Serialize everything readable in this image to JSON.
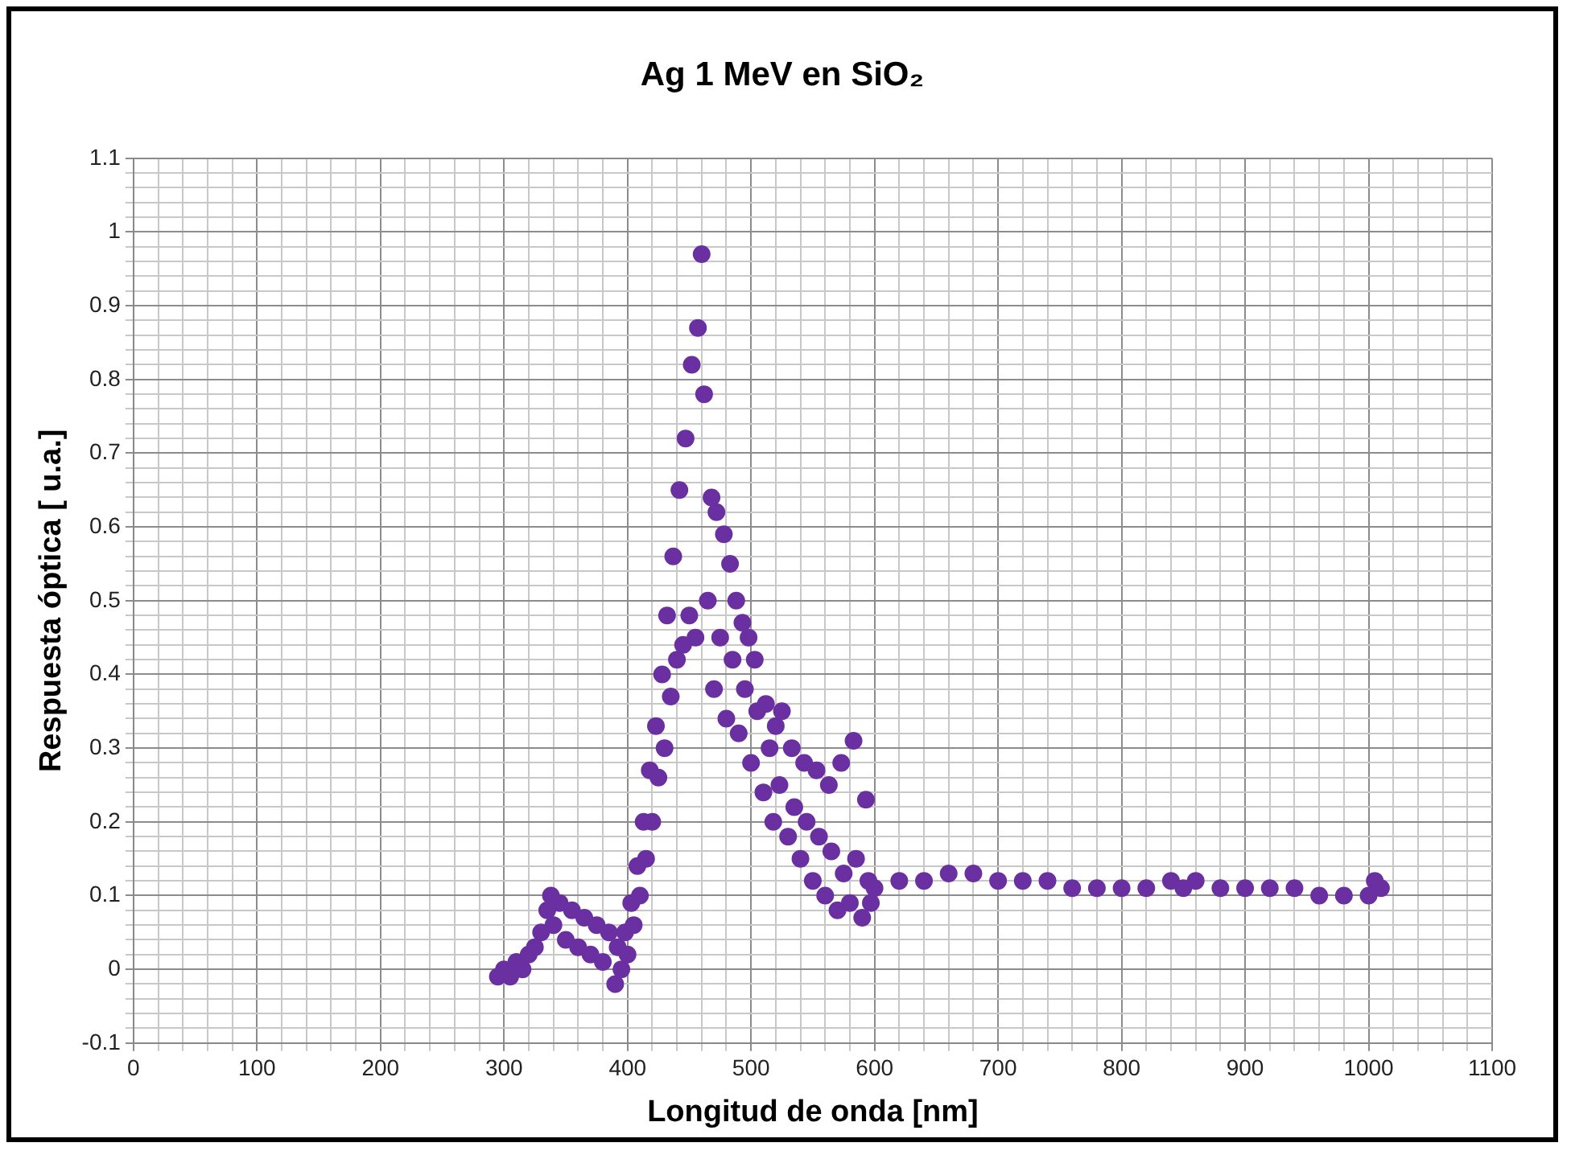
{
  "chart_data": {
    "type": "scatter",
    "title": "Ag 1 MeV en SiO₂",
    "xlabel": "Longitud de onda [nm]",
    "ylabel": "Respuesta óptica [ u.a.]",
    "x": [
      295,
      300,
      305,
      310,
      315,
      320,
      325,
      330,
      335,
      338,
      340,
      345,
      350,
      355,
      360,
      365,
      370,
      375,
      380,
      385,
      390,
      392,
      395,
      398,
      400,
      403,
      405,
      408,
      410,
      413,
      415,
      418,
      420,
      423,
      425,
      428,
      430,
      432,
      435,
      437,
      440,
      442,
      445,
      447,
      450,
      452,
      455,
      457,
      460,
      462,
      465,
      468,
      470,
      472,
      475,
      478,
      480,
      483,
      485,
      488,
      490,
      493,
      495,
      498,
      500,
      503,
      505,
      510,
      512,
      515,
      518,
      520,
      523,
      525,
      530,
      533,
      535,
      540,
      543,
      545,
      550,
      553,
      555,
      560,
      563,
      565,
      570,
      573,
      575,
      580,
      583,
      585,
      590,
      593,
      595,
      597,
      600,
      620,
      640,
      660,
      680,
      700,
      720,
      740,
      760,
      780,
      800,
      820,
      840,
      850,
      860,
      880,
      900,
      920,
      940,
      960,
      980,
      1000,
      1005,
      1010
    ],
    "values": [
      -0.01,
      0.0,
      -0.01,
      0.01,
      0.0,
      0.02,
      0.03,
      0.05,
      0.08,
      0.1,
      0.06,
      0.09,
      0.04,
      0.08,
      0.03,
      0.07,
      0.02,
      0.06,
      0.01,
      0.05,
      -0.02,
      0.03,
      0.0,
      0.05,
      0.02,
      0.09,
      0.06,
      0.14,
      0.1,
      0.2,
      0.15,
      0.27,
      0.2,
      0.33,
      0.26,
      0.4,
      0.3,
      0.48,
      0.37,
      0.56,
      0.42,
      0.65,
      0.44,
      0.72,
      0.48,
      0.82,
      0.45,
      0.87,
      0.97,
      0.78,
      0.5,
      0.64,
      0.38,
      0.62,
      0.45,
      0.59,
      0.34,
      0.55,
      0.42,
      0.5,
      0.32,
      0.47,
      0.38,
      0.45,
      0.28,
      0.42,
      0.35,
      0.24,
      0.36,
      0.3,
      0.2,
      0.33,
      0.25,
      0.35,
      0.18,
      0.3,
      0.22,
      0.15,
      0.28,
      0.2,
      0.12,
      0.27,
      0.18,
      0.1,
      0.25,
      0.16,
      0.08,
      0.28,
      0.13,
      0.09,
      0.31,
      0.15,
      0.07,
      0.23,
      0.12,
      0.09,
      0.11,
      0.12,
      0.12,
      0.13,
      0.13,
      0.12,
      0.12,
      0.12,
      0.11,
      0.11,
      0.11,
      0.11,
      0.12,
      0.11,
      0.12,
      0.11,
      0.11,
      0.11,
      0.11,
      0.1,
      0.1,
      0.1,
      0.12,
      0.11
    ],
    "color": "#6a2fa0",
    "marker": "circle",
    "grid": true,
    "xlim": [
      0,
      1100
    ],
    "ylim": [
      -0.1,
      1.1
    ],
    "xticks": [
      0,
      {
        "value": 20,
        "label": null
      },
      {
        "value": 40,
        "label": null
      },
      {
        "value": 60,
        "label": null
      },
      {
        "value": 80,
        "label": null
      },
      100,
      {
        "value": 120,
        "label": null
      },
      {
        "value": 140,
        "label": null
      },
      {
        "value": 160,
        "label": null
      },
      {
        "value": 180,
        "label": null
      },
      200,
      {
        "value": 220,
        "label": null
      },
      {
        "value": 240,
        "label": null
      },
      {
        "value": 260,
        "label": null
      },
      {
        "value": 280,
        "label": null
      },
      300,
      {
        "value": 320,
        "label": null
      },
      {
        "value": 340,
        "label": null
      },
      {
        "value": 360,
        "label": null
      },
      {
        "value": 380,
        "label": null
      },
      400,
      {
        "value": 420,
        "label": null
      },
      {
        "value": 440,
        "label": null
      },
      {
        "value": 460,
        "label": null
      },
      {
        "value": 480,
        "label": null
      },
      500,
      {
        "value": 520,
        "label": null
      },
      {
        "value": 540,
        "label": null
      },
      {
        "value": 560,
        "label": null
      },
      {
        "value": 580,
        "label": null
      },
      600,
      {
        "value": 620,
        "label": null
      },
      {
        "value": 640,
        "label": null
      },
      {
        "value": 660,
        "label": null
      },
      {
        "value": 680,
        "label": null
      },
      700,
      {
        "value": 720,
        "label": null
      },
      {
        "value": 740,
        "label": null
      },
      {
        "value": 760,
        "label": null
      },
      {
        "value": 780,
        "label": null
      },
      800,
      {
        "value": 820,
        "label": null
      },
      {
        "value": 840,
        "label": null
      },
      {
        "value": 860,
        "label": null
      },
      {
        "value": 880,
        "label": null
      },
      900,
      {
        "value": 920,
        "label": null
      },
      {
        "value": 940,
        "label": null
      },
      {
        "value": 960,
        "label": null
      },
      {
        "value": 980,
        "label": null
      },
      1000,
      {
        "value": 1020,
        "label": null
      },
      {
        "value": 1040,
        "label": null
      },
      {
        "value": 1060,
        "label": null
      },
      {
        "value": 1080,
        "label": null
      },
      1100
    ],
    "yticks": [
      -0.1,
      {
        "value": -0.08,
        "label": null
      },
      {
        "value": -0.06,
        "label": null
      },
      {
        "value": -0.04,
        "label": null
      },
      {
        "value": -0.02,
        "label": null
      },
      0,
      {
        "value": 0.02,
        "label": null
      },
      {
        "value": 0.04,
        "label": null
      },
      {
        "value": 0.06,
        "label": null
      },
      {
        "value": 0.08,
        "label": null
      },
      0.1,
      {
        "value": 0.12,
        "label": null
      },
      {
        "value": 0.14,
        "label": null
      },
      {
        "value": 0.16,
        "label": null
      },
      {
        "value": 0.18,
        "label": null
      },
      0.2,
      {
        "value": 0.22,
        "label": null
      },
      {
        "value": 0.24,
        "label": null
      },
      {
        "value": 0.26,
        "label": null
      },
      {
        "value": 0.28,
        "label": null
      },
      0.3,
      {
        "value": 0.32,
        "label": null
      },
      {
        "value": 0.34,
        "label": null
      },
      {
        "value": 0.36,
        "label": null
      },
      {
        "value": 0.38,
        "label": null
      },
      0.4,
      {
        "value": 0.42,
        "label": null
      },
      {
        "value": 0.44,
        "label": null
      },
      {
        "value": 0.46,
        "label": null
      },
      {
        "value": 0.48,
        "label": null
      },
      0.5,
      {
        "value": 0.52,
        "label": null
      },
      {
        "value": 0.54,
        "label": null
      },
      {
        "value": 0.56,
        "label": null
      },
      {
        "value": 0.58,
        "label": null
      },
      0.6,
      {
        "value": 0.62,
        "label": null
      },
      {
        "value": 0.64,
        "label": null
      },
      {
        "value": 0.66,
        "label": null
      },
      {
        "value": 0.68,
        "label": null
      },
      0.7,
      {
        "value": 0.72,
        "label": null
      },
      {
        "value": 0.74,
        "label": null
      },
      {
        "value": 0.76,
        "label": null
      },
      {
        "value": 0.78,
        "label": null
      },
      0.8,
      {
        "value": 0.82,
        "label": null
      },
      {
        "value": 0.84,
        "label": null
      },
      {
        "value": 0.86,
        "label": null
      },
      {
        "value": 0.88,
        "label": null
      },
      0.9,
      {
        "value": 0.92,
        "label": null
      },
      {
        "value": 0.94,
        "label": null
      },
      {
        "value": 0.96,
        "label": null
      },
      {
        "value": 0.98,
        "label": null
      },
      1,
      {
        "value": 1.02,
        "label": null
      },
      {
        "value": 1.04,
        "label": null
      },
      {
        "value": 1.06,
        "label": null
      },
      {
        "value": 1.08,
        "label": null
      },
      1.1
    ]
  }
}
